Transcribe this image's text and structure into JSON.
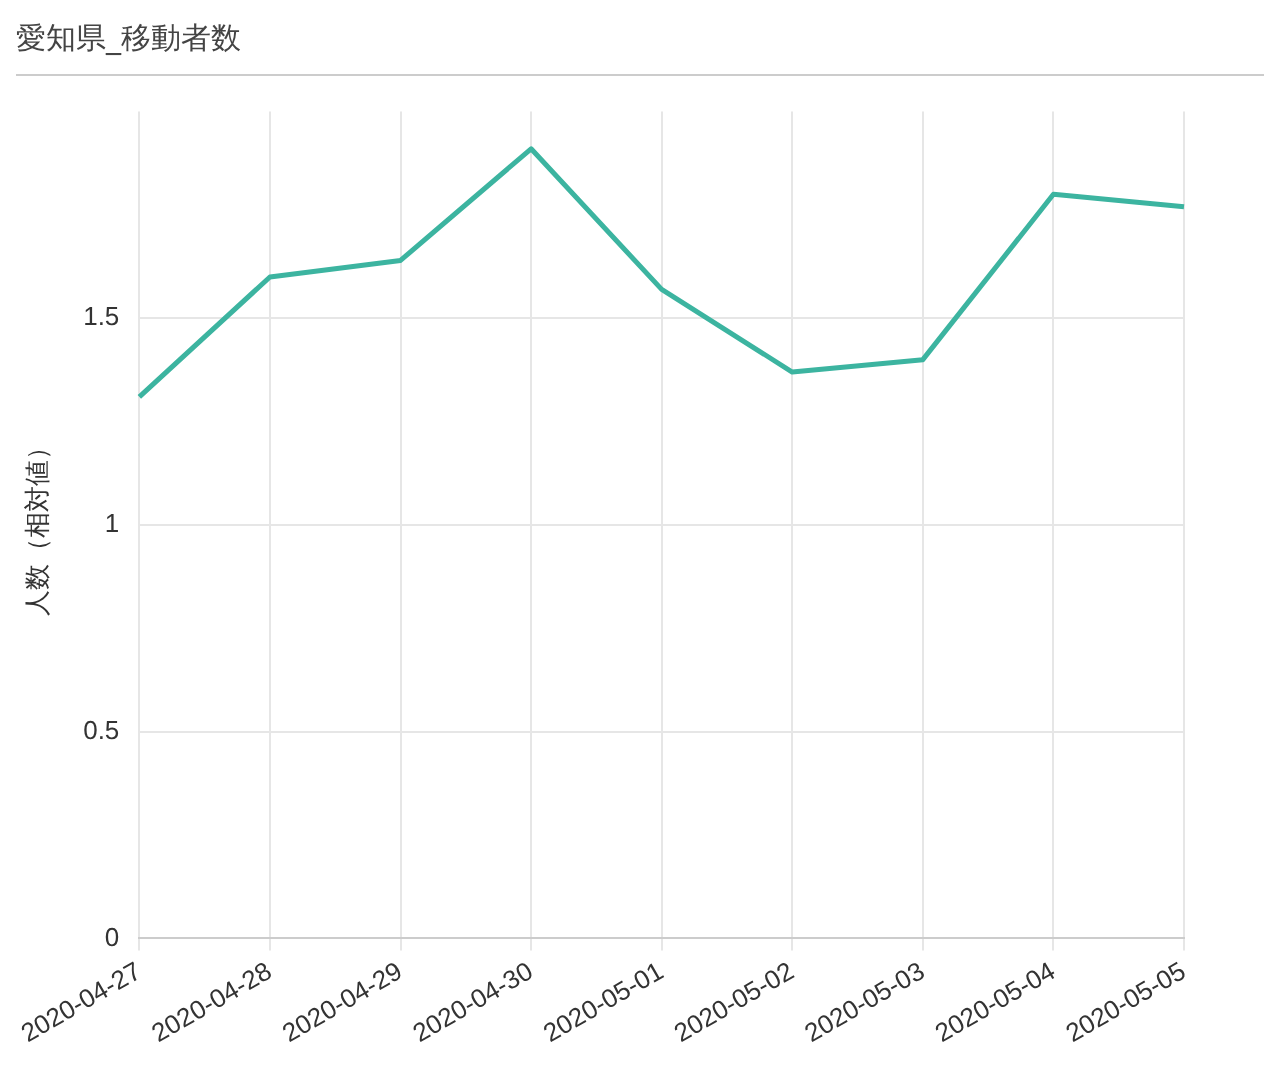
{
  "chart_data": {
    "type": "line",
    "title": "愛知県_移動者数",
    "ylabel": "人数（相対値）",
    "categories": [
      "2020-04-27",
      "2020-04-28",
      "2020-04-29",
      "2020-04-30",
      "2020-05-01",
      "2020-05-02",
      "2020-05-03",
      "2020-05-04",
      "2020-05-05"
    ],
    "series": [
      {
        "color": "#3cb4a0",
        "values": [
          1.31,
          1.6,
          1.64,
          1.91,
          1.57,
          1.37,
          1.4,
          1.8,
          1.77
        ]
      }
    ],
    "ylim": [
      0,
      2
    ],
    "yticks": [
      0,
      0.5,
      {
        "value": 1,
        "label": "1"
      },
      1.5
    ],
    "grid": true,
    "legend": false,
    "marker": "none",
    "line_style": "solid"
  }
}
